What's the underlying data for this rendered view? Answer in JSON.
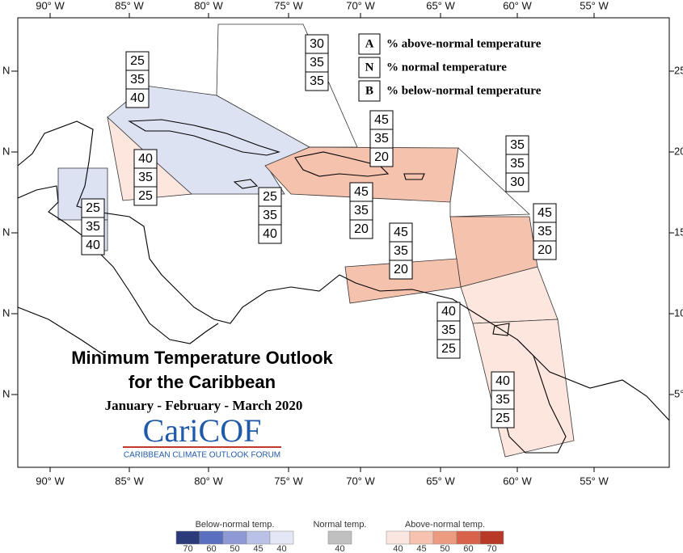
{
  "map_title": "Minimum Temperature Outlook",
  "map_title_2": "for the Caribbean",
  "period": "January - February - March 2020",
  "logo": {
    "name": "CariCOF",
    "tagline": "CARIBBEAN CLIMATE OUTLOOK FORUM"
  },
  "key": [
    {
      "letter": "A",
      "label": "% above-normal temperature"
    },
    {
      "letter": "N",
      "label": "% normal temperature"
    },
    {
      "letter": "B",
      "label": "% below-normal temperature"
    }
  ],
  "longitude_labels": [
    "90° W",
    "85° W",
    "80° W",
    "75° W",
    "70° W",
    "65° W",
    "60° W",
    "55° W"
  ],
  "latitude_labels_left": [
    "N",
    "N",
    "N",
    "N",
    "N"
  ],
  "latitude_labels_right": [
    "25",
    "20°",
    "15°",
    "10°",
    "5°"
  ],
  "forecast_boxes": [
    {
      "A": 25,
      "N": 35,
      "B": 40
    },
    {
      "A": 30,
      "N": 35,
      "B": 35
    },
    {
      "A": 45,
      "N": 35,
      "B": 20
    },
    {
      "A": 35,
      "N": 35,
      "B": 30
    },
    {
      "A": 40,
      "N": 35,
      "B": 25
    },
    {
      "A": 25,
      "N": 35,
      "B": 40
    },
    {
      "A": 45,
      "N": 35,
      "B": 20
    },
    {
      "A": 25,
      "N": 35,
      "B": 40
    },
    {
      "A": 45,
      "N": 35,
      "B": 20
    },
    {
      "A": 45,
      "N": 35,
      "B": 20
    },
    {
      "A": 40,
      "N": 35,
      "B": 25
    },
    {
      "A": 40,
      "N": 35,
      "B": 25
    }
  ],
  "legend": {
    "below": {
      "title": "Below-normal temp.",
      "ticks": [
        70,
        60,
        50,
        45,
        40
      ]
    },
    "normal": {
      "title": "Normal temp.",
      "ticks": [
        40
      ]
    },
    "above": {
      "title": "Above-normal temp.",
      "ticks": [
        40,
        45,
        50,
        60,
        70
      ]
    }
  }
}
